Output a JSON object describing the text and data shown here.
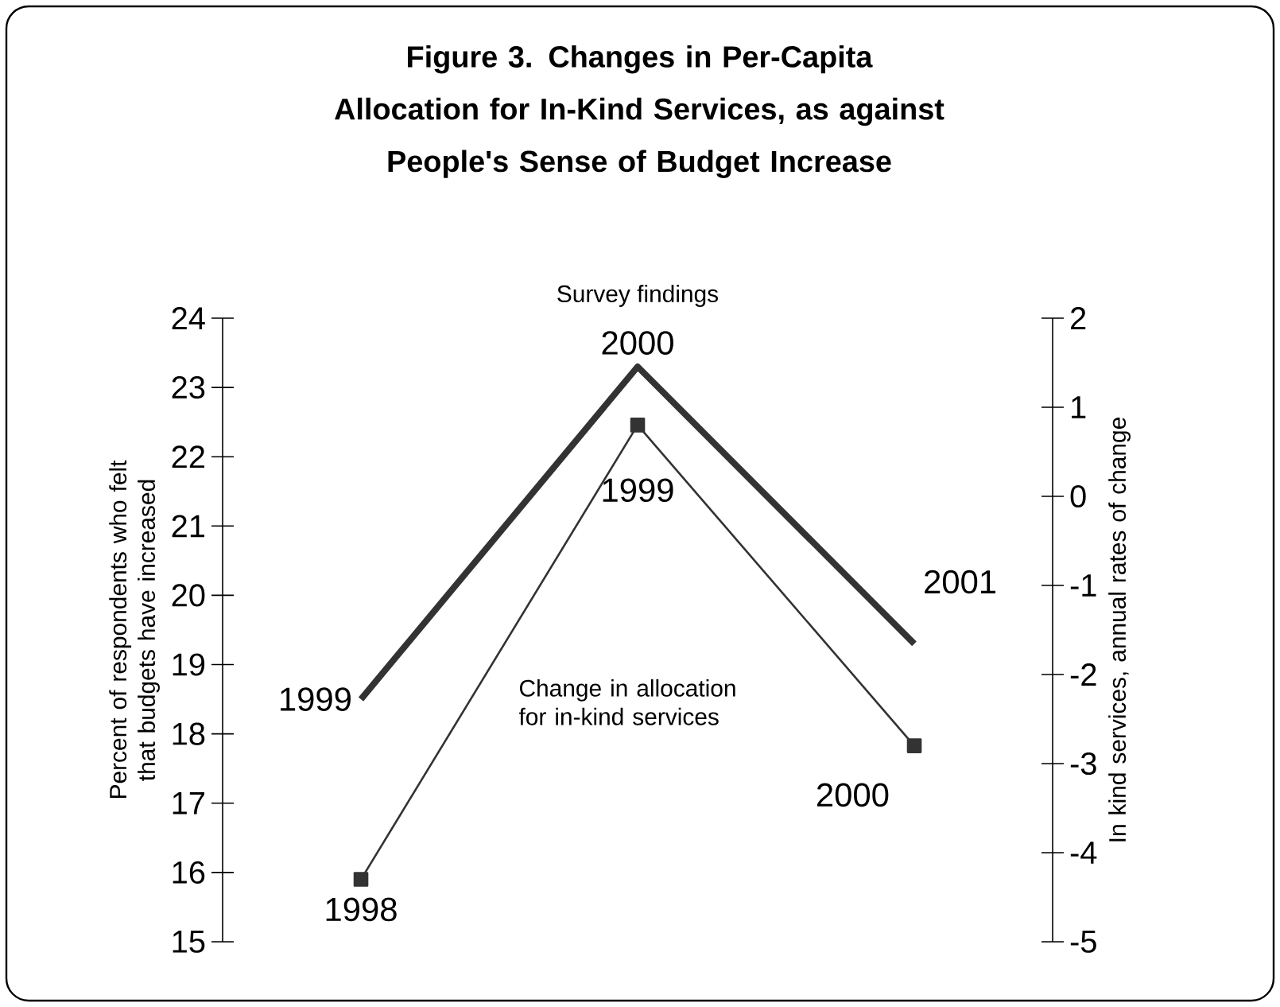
{
  "chart_data": {
    "type": "line",
    "title": "Figure 3. Changes in Per-Capita Allocation for In-Kind Services, as against People's Sense of Budget Increase",
    "ylabel": "Percent of respondents who felt that budgets have increased",
    "y2label": "In kind services, annual rates of change",
    "categories": [
      null,
      null,
      null
    ],
    "series": [
      {
        "name": "Survey findings",
        "color": "#333333",
        "values": [
          18.5,
          23.3,
          19.3
        ],
        "marker": "none"
      },
      {
        "name": "Change in allocation for in-kind services",
        "color": "#333333",
        "values": [
          -4.3,
          0.8,
          -2.8
        ],
        "axis": "y2",
        "marker": "square"
      }
    ],
    "annotations": [
      "1999",
      "2000",
      "2001",
      "1998",
      "1999",
      "2000"
    ],
    "ylim": [
      15,
      24
    ],
    "yticks": [
      15,
      16,
      17,
      18,
      19,
      20,
      21,
      22,
      23,
      24
    ],
    "y2lim": [
      -5,
      2
    ],
    "y2ticks": [
      -5,
      -4,
      -3,
      -2,
      -1,
      0,
      1,
      2
    ],
    "tick_labels": "y",
    "grid": false
  }
}
